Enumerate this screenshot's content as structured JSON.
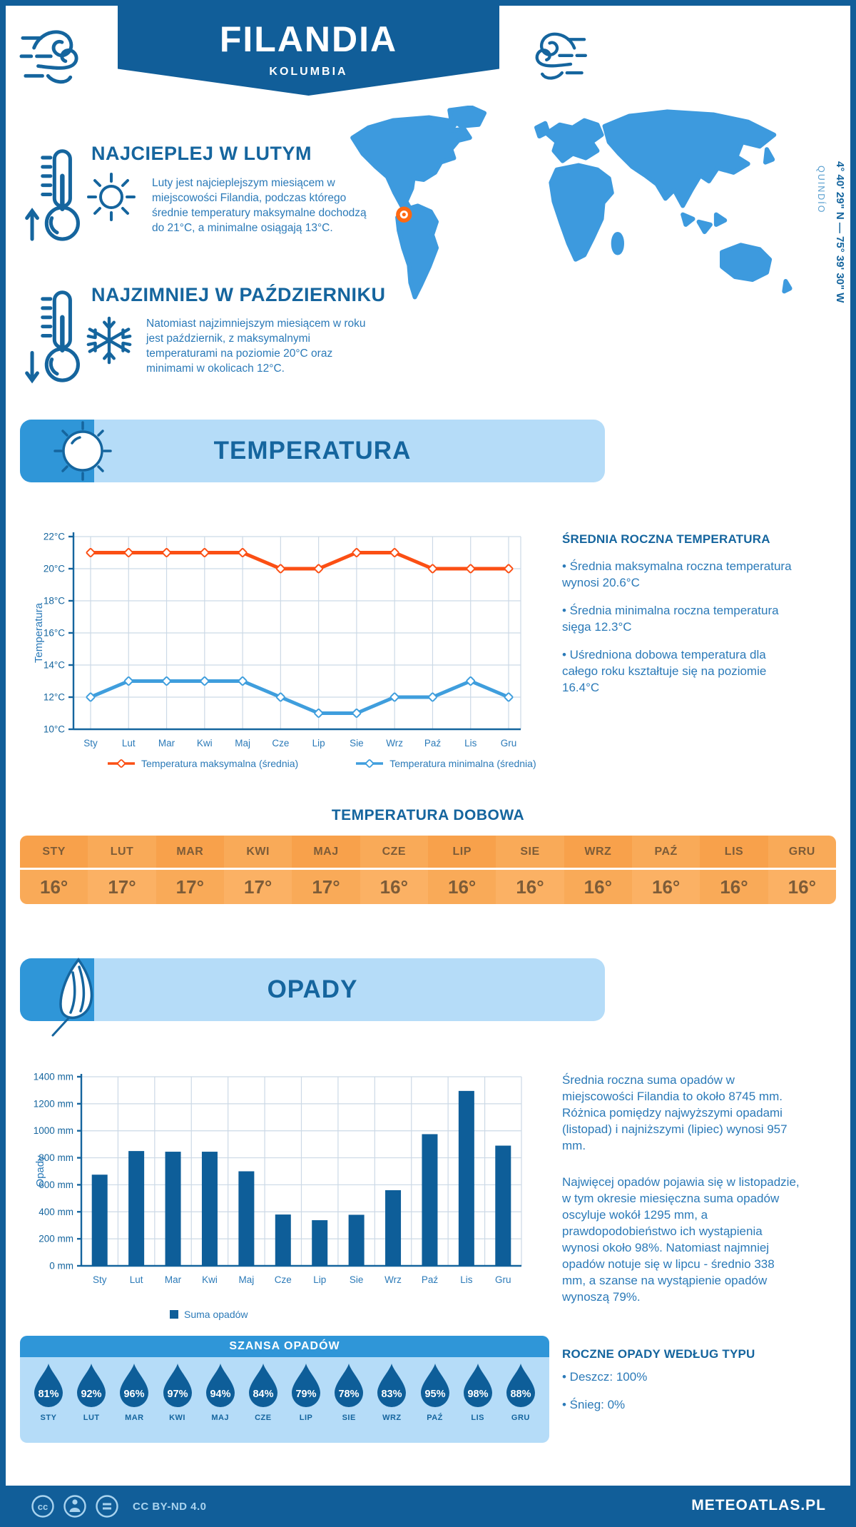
{
  "theme": {
    "primary": "#115e99",
    "heading": "#15659e",
    "body": "#2b7ab8",
    "panel": "#b5dcf8",
    "accent": "#2f96d8",
    "map": "#3d9ade",
    "region": "#5ba0d0",
    "orange": "#fb4f14",
    "lineblue": "#3f9edd",
    "grid": "#ccd9e6",
    "bar": "#0e5e99",
    "thodd": "#f8a14b",
    "theven": "#f9aa58",
    "tdodd": "#f9aa58",
    "tdeven": "#fbb164",
    "tabletext": "#7d5c38",
    "footertext": "#a9d3ee",
    "marker": "#ff6812"
  },
  "header": {
    "title": "FILANDIA",
    "subtitle": "KOLUMBIA"
  },
  "intro": {
    "warm": {
      "heading": "NAJCIEPLEJ W LUTYM",
      "text": "Luty jest najcieplejszym miesiącem w miejscowości Filandia, podczas którego średnie temperatury maksymalne dochodzą do 21°C, a minimalne osiągają 13°C."
    },
    "cold": {
      "heading": "NAJZIMNIEJ W PAŹDZIERNIKU",
      "text": "Natomiast najzimniejszym miesiącem w roku jest październik, z maksymalnymi temperaturami na poziomie 20°C oraz minimami w okolicach 12°C."
    }
  },
  "map": {
    "coordinates": "4° 40' 29\" N — 75° 39' 30\" W",
    "region": "QUINDÍO"
  },
  "sections": {
    "temperature": "TEMPERATURA",
    "precipitation": "OPADY"
  },
  "annual_temperature": {
    "heading": "ŚREDNIA ROCZNA TEMPERATURA",
    "bullets": [
      "• Średnia maksymalna roczna temperatura wynosi 20.6°C",
      "• Średnia minimalna roczna temperatura sięga 12.3°C",
      "• Uśredniona dobowa temperatura dla całego roku kształtuje się na poziomie 16.4°C"
    ]
  },
  "precipitation_summary": {
    "p1": "Średnia roczna suma opadów w miejscowości Filandia to około 8745 mm. Różnica pomiędzy najwyższymi opadami (listopad) i najniższymi (lipiec) wynosi 957 mm.",
    "p2": "Najwięcej opadów pojawia się w listopadzie, w tym okresie miesięczna suma opadów oscyluje wokół 1295 mm, a prawdopodobieństwo ich wystąpienia wynosi około 98%. Natomiast najmniej opadów notuje się w lipcu - średnio 338 mm, a szanse na wystąpienie opadów wynoszą 79%."
  },
  "precipitation_types": {
    "heading": "ROCZNE OPADY WEDŁUG TYPU",
    "bullets": [
      "• Deszcz: 100%",
      "• Śnieg: 0%"
    ]
  },
  "footer": {
    "license": "CC BY-ND 4.0",
    "site": "METEOATLAS.PL"
  },
  "chart_data": [
    {
      "type": "line",
      "categories": [
        "Sty",
        "Lut",
        "Mar",
        "Kwi",
        "Maj",
        "Cze",
        "Lip",
        "Sie",
        "Wrz",
        "Paź",
        "Lis",
        "Gru"
      ],
      "series": [
        {
          "name": "Temperatura maksymalna (średnia)",
          "color": "#fb4f14",
          "values": [
            21,
            21,
            21,
            21,
            21,
            20,
            20,
            21,
            21,
            20,
            20,
            20
          ]
        },
        {
          "name": "Temperatura minimalna (średnia)",
          "color": "#3f9edd",
          "values": [
            12,
            13,
            13,
            13,
            13,
            12,
            11,
            11,
            12,
            12,
            13,
            12
          ]
        }
      ],
      "ylabel": "Temperatura",
      "ylim": [
        10,
        22
      ],
      "ytick_step": 2,
      "ytick_suffix": "°C",
      "grid": true,
      "legend_position": "bottom"
    },
    {
      "type": "table",
      "title": "TEMPERATURA DOBOWA",
      "columns": [
        "STY",
        "LUT",
        "MAR",
        "KWI",
        "MAJ",
        "CZE",
        "LIP",
        "SIE",
        "WRZ",
        "PAŹ",
        "LIS",
        "GRU"
      ],
      "values": [
        "16°",
        "17°",
        "17°",
        "17°",
        "17°",
        "16°",
        "16°",
        "16°",
        "16°",
        "16°",
        "16°",
        "16°"
      ]
    },
    {
      "type": "bar",
      "categories": [
        "Sty",
        "Lut",
        "Mar",
        "Kwi",
        "Maj",
        "Cze",
        "Lip",
        "Sie",
        "Wrz",
        "Paź",
        "Lis",
        "Gru"
      ],
      "values": [
        675,
        850,
        845,
        845,
        700,
        380,
        338,
        378,
        560,
        975,
        1295,
        890
      ],
      "ylabel": "Opady",
      "ylim": [
        0,
        1400
      ],
      "ytick_step": 200,
      "ytick_suffix": " mm",
      "legend": "Suma opadów",
      "color": "#0e5e99",
      "grid": true
    },
    {
      "type": "droplets",
      "title": "SZANSA OPADÓW",
      "categories": [
        "STY",
        "LUT",
        "MAR",
        "KWI",
        "MAJ",
        "CZE",
        "LIP",
        "SIE",
        "WRZ",
        "PAŹ",
        "LIS",
        "GRU"
      ],
      "values": [
        "81%",
        "92%",
        "96%",
        "97%",
        "94%",
        "84%",
        "79%",
        "78%",
        "83%",
        "95%",
        "98%",
        "88%"
      ]
    }
  ]
}
